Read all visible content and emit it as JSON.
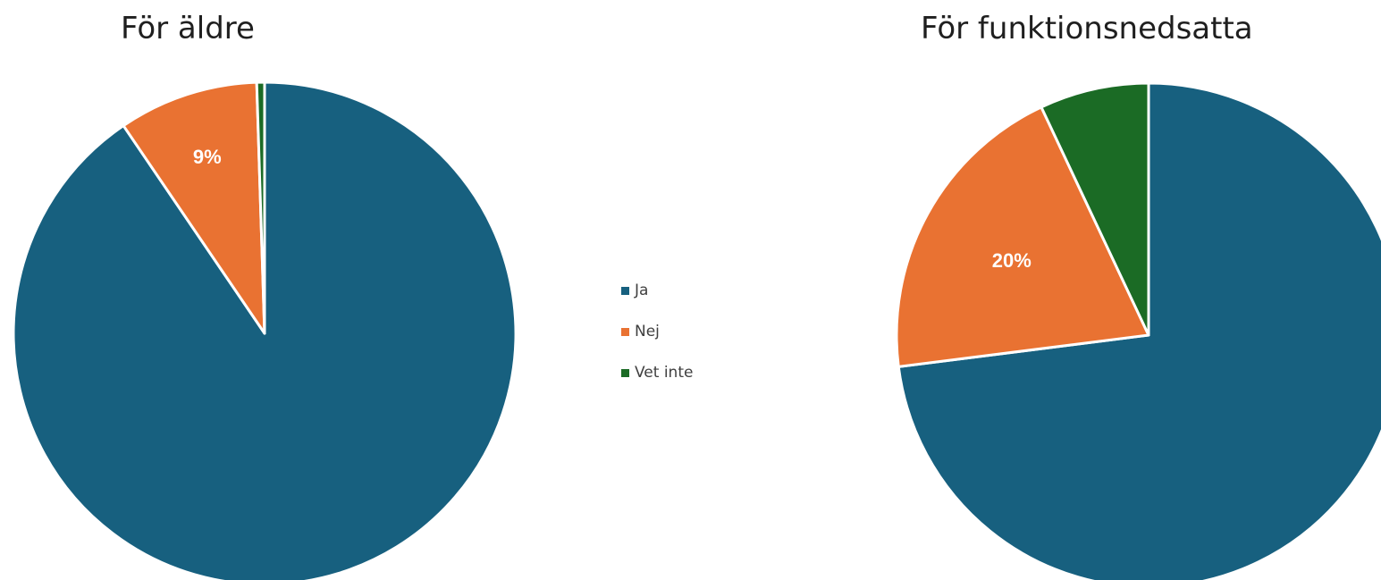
{
  "chart_data": [
    {
      "type": "pie",
      "title": "För äldre",
      "categories": [
        "Ja",
        "Nej",
        "Vet inte"
      ],
      "values": [
        90.5,
        9,
        0.5
      ],
      "data_labels": [
        "",
        "9%",
        ""
      ],
      "colors": [
        "#17607f",
        "#e97232",
        "#1b6b25"
      ],
      "legend_position": "right"
    },
    {
      "type": "pie",
      "title": "För funktionsnedsatta",
      "categories": [
        "Ja",
        "Nej",
        "Vet inte"
      ],
      "values": [
        73,
        20,
        7
      ],
      "data_labels": [
        "",
        "20%",
        ""
      ],
      "colors": [
        "#17607f",
        "#e97232",
        "#1b6b25"
      ],
      "legend_position": "right"
    }
  ],
  "legend": [
    {
      "label": "Ja",
      "color": "#17607f"
    },
    {
      "label": "Nej",
      "color": "#e97232"
    },
    {
      "label": "Vet inte",
      "color": "#1b6b25"
    }
  ]
}
